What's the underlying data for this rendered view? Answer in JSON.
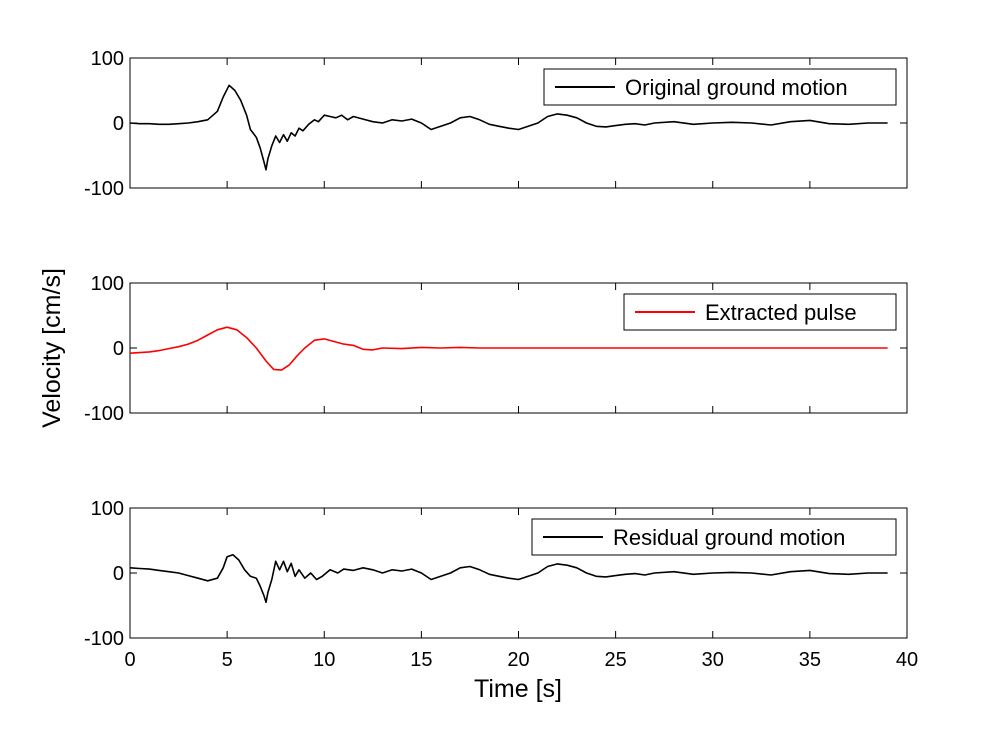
{
  "figure": {
    "ylabel": "Velocity [cm/s]",
    "xlabel": "Time [s]"
  },
  "chart_data": [
    {
      "type": "line",
      "legend_position": "top-right",
      "xlim": [
        0,
        40
      ],
      "ylim": [
        -100,
        100
      ],
      "yticks": [
        100,
        0,
        -100
      ],
      "xticks": [],
      "grid": false,
      "series": [
        {
          "name": "Original ground motion",
          "color": "#000000",
          "points": [
            [
              0,
              0
            ],
            [
              0.5,
              -1
            ],
            [
              1,
              -1
            ],
            [
              1.5,
              -2
            ],
            [
              2,
              -2
            ],
            [
              2.5,
              -1
            ],
            [
              3,
              0
            ],
            [
              3.5,
              2
            ],
            [
              4,
              5
            ],
            [
              4.5,
              18
            ],
            [
              4.8,
              40
            ],
            [
              5.1,
              58
            ],
            [
              5.4,
              50
            ],
            [
              5.7,
              35
            ],
            [
              6,
              12
            ],
            [
              6.2,
              -10
            ],
            [
              6.5,
              -22
            ],
            [
              6.7,
              -38
            ],
            [
              6.9,
              -60
            ],
            [
              7,
              -72
            ],
            [
              7.1,
              -55
            ],
            [
              7.3,
              -35
            ],
            [
              7.5,
              -20
            ],
            [
              7.7,
              -30
            ],
            [
              7.9,
              -18
            ],
            [
              8.1,
              -28
            ],
            [
              8.3,
              -15
            ],
            [
              8.5,
              -20
            ],
            [
              8.7,
              -8
            ],
            [
              8.9,
              -12
            ],
            [
              9.2,
              -2
            ],
            [
              9.5,
              5
            ],
            [
              9.7,
              2
            ],
            [
              10,
              12
            ],
            [
              10.3,
              10
            ],
            [
              10.6,
              8
            ],
            [
              10.9,
              12
            ],
            [
              11.2,
              5
            ],
            [
              11.5,
              10
            ],
            [
              12,
              6
            ],
            [
              12.5,
              2
            ],
            [
              13,
              0
            ],
            [
              13.5,
              5
            ],
            [
              14,
              3
            ],
            [
              14.5,
              6
            ],
            [
              15,
              0
            ],
            [
              15.5,
              -10
            ],
            [
              16,
              -5
            ],
            [
              16.5,
              0
            ],
            [
              17,
              8
            ],
            [
              17.5,
              10
            ],
            [
              18,
              5
            ],
            [
              18.5,
              -2
            ],
            [
              19,
              -5
            ],
            [
              19.5,
              -8
            ],
            [
              20,
              -10
            ],
            [
              20.5,
              -5
            ],
            [
              21,
              0
            ],
            [
              21.5,
              10
            ],
            [
              22,
              14
            ],
            [
              22.5,
              12
            ],
            [
              23,
              8
            ],
            [
              23.5,
              0
            ],
            [
              24,
              -5
            ],
            [
              24.5,
              -6
            ],
            [
              25,
              -4
            ],
            [
              25.5,
              -2
            ],
            [
              26,
              -1
            ],
            [
              26.5,
              -3
            ],
            [
              27,
              0
            ],
            [
              28,
              2
            ],
            [
              29,
              -2
            ],
            [
              30,
              0
            ],
            [
              31,
              1
            ],
            [
              32,
              0
            ],
            [
              33,
              -3
            ],
            [
              34,
              2
            ],
            [
              35,
              4
            ],
            [
              36,
              -1
            ],
            [
              37,
              -2
            ],
            [
              38,
              0
            ],
            [
              39,
              0
            ]
          ]
        }
      ]
    },
    {
      "type": "line",
      "legend_position": "top-right",
      "xlim": [
        0,
        40
      ],
      "ylim": [
        -100,
        100
      ],
      "yticks": [
        100,
        0,
        -100
      ],
      "xticks": [],
      "grid": false,
      "series": [
        {
          "name": "Extracted pulse",
          "color": "#ff0000",
          "points": [
            [
              0,
              -8
            ],
            [
              0.5,
              -7
            ],
            [
              1,
              -6
            ],
            [
              1.5,
              -4
            ],
            [
              2,
              -1
            ],
            [
              2.5,
              2
            ],
            [
              3,
              6
            ],
            [
              3.5,
              12
            ],
            [
              4,
              20
            ],
            [
              4.5,
              28
            ],
            [
              5,
              32
            ],
            [
              5.5,
              28
            ],
            [
              6,
              16
            ],
            [
              6.5,
              0
            ],
            [
              7,
              -20
            ],
            [
              7.4,
              -33
            ],
            [
              7.8,
              -34
            ],
            [
              8.2,
              -26
            ],
            [
              8.6,
              -12
            ],
            [
              9,
              0
            ],
            [
              9.5,
              12
            ],
            [
              10,
              14
            ],
            [
              10.5,
              10
            ],
            [
              11,
              6
            ],
            [
              11.5,
              4
            ],
            [
              12,
              -2
            ],
            [
              12.5,
              -3
            ],
            [
              13,
              0
            ],
            [
              14,
              -1
            ],
            [
              15,
              1
            ],
            [
              16,
              0
            ],
            [
              17,
              1
            ],
            [
              18,
              0
            ],
            [
              20,
              0
            ],
            [
              25,
              0
            ],
            [
              30,
              0
            ],
            [
              35,
              0
            ],
            [
              39,
              0
            ]
          ]
        }
      ]
    },
    {
      "type": "line",
      "legend_position": "top-right",
      "xlim": [
        0,
        40
      ],
      "ylim": [
        -100,
        100
      ],
      "yticks": [
        100,
        0,
        -100
      ],
      "xticks": [
        0,
        5,
        10,
        15,
        20,
        25,
        30,
        35,
        40
      ],
      "grid": false,
      "series": [
        {
          "name": "Residual ground motion",
          "color": "#000000",
          "points": [
            [
              0,
              8
            ],
            [
              0.5,
              7
            ],
            [
              1,
              6
            ],
            [
              1.5,
              4
            ],
            [
              2,
              2
            ],
            [
              2.5,
              0
            ],
            [
              3,
              -4
            ],
            [
              3.5,
              -8
            ],
            [
              4,
              -12
            ],
            [
              4.5,
              -8
            ],
            [
              4.8,
              8
            ],
            [
              5,
              25
            ],
            [
              5.3,
              28
            ],
            [
              5.6,
              20
            ],
            [
              5.9,
              5
            ],
            [
              6.2,
              -5
            ],
            [
              6.5,
              -8
            ],
            [
              6.7,
              -20
            ],
            [
              6.9,
              -35
            ],
            [
              7,
              -45
            ],
            [
              7.1,
              -30
            ],
            [
              7.3,
              -10
            ],
            [
              7.5,
              18
            ],
            [
              7.7,
              5
            ],
            [
              7.9,
              18
            ],
            [
              8.1,
              2
            ],
            [
              8.3,
              15
            ],
            [
              8.5,
              -5
            ],
            [
              8.7,
              5
            ],
            [
              9,
              -8
            ],
            [
              9.3,
              0
            ],
            [
              9.6,
              -10
            ],
            [
              9.9,
              -5
            ],
            [
              10.3,
              5
            ],
            [
              10.7,
              0
            ],
            [
              11,
              6
            ],
            [
              11.5,
              4
            ],
            [
              12,
              8
            ],
            [
              12.5,
              5
            ],
            [
              13,
              0
            ],
            [
              13.5,
              5
            ],
            [
              14,
              3
            ],
            [
              14.5,
              6
            ],
            [
              15,
              0
            ],
            [
              15.5,
              -10
            ],
            [
              16,
              -5
            ],
            [
              16.5,
              0
            ],
            [
              17,
              8
            ],
            [
              17.5,
              10
            ],
            [
              18,
              5
            ],
            [
              18.5,
              -2
            ],
            [
              19,
              -5
            ],
            [
              19.5,
              -8
            ],
            [
              20,
              -10
            ],
            [
              20.5,
              -5
            ],
            [
              21,
              0
            ],
            [
              21.5,
              10
            ],
            [
              22,
              14
            ],
            [
              22.5,
              12
            ],
            [
              23,
              8
            ],
            [
              23.5,
              0
            ],
            [
              24,
              -5
            ],
            [
              24.5,
              -6
            ],
            [
              25,
              -4
            ],
            [
              25.5,
              -2
            ],
            [
              26,
              -1
            ],
            [
              26.5,
              -3
            ],
            [
              27,
              0
            ],
            [
              28,
              2
            ],
            [
              29,
              -2
            ],
            [
              30,
              0
            ],
            [
              31,
              1
            ],
            [
              32,
              0
            ],
            [
              33,
              -3
            ],
            [
              34,
              2
            ],
            [
              35,
              4
            ],
            [
              36,
              -1
            ],
            [
              37,
              -2
            ],
            [
              38,
              0
            ],
            [
              39,
              0
            ]
          ]
        }
      ]
    }
  ]
}
